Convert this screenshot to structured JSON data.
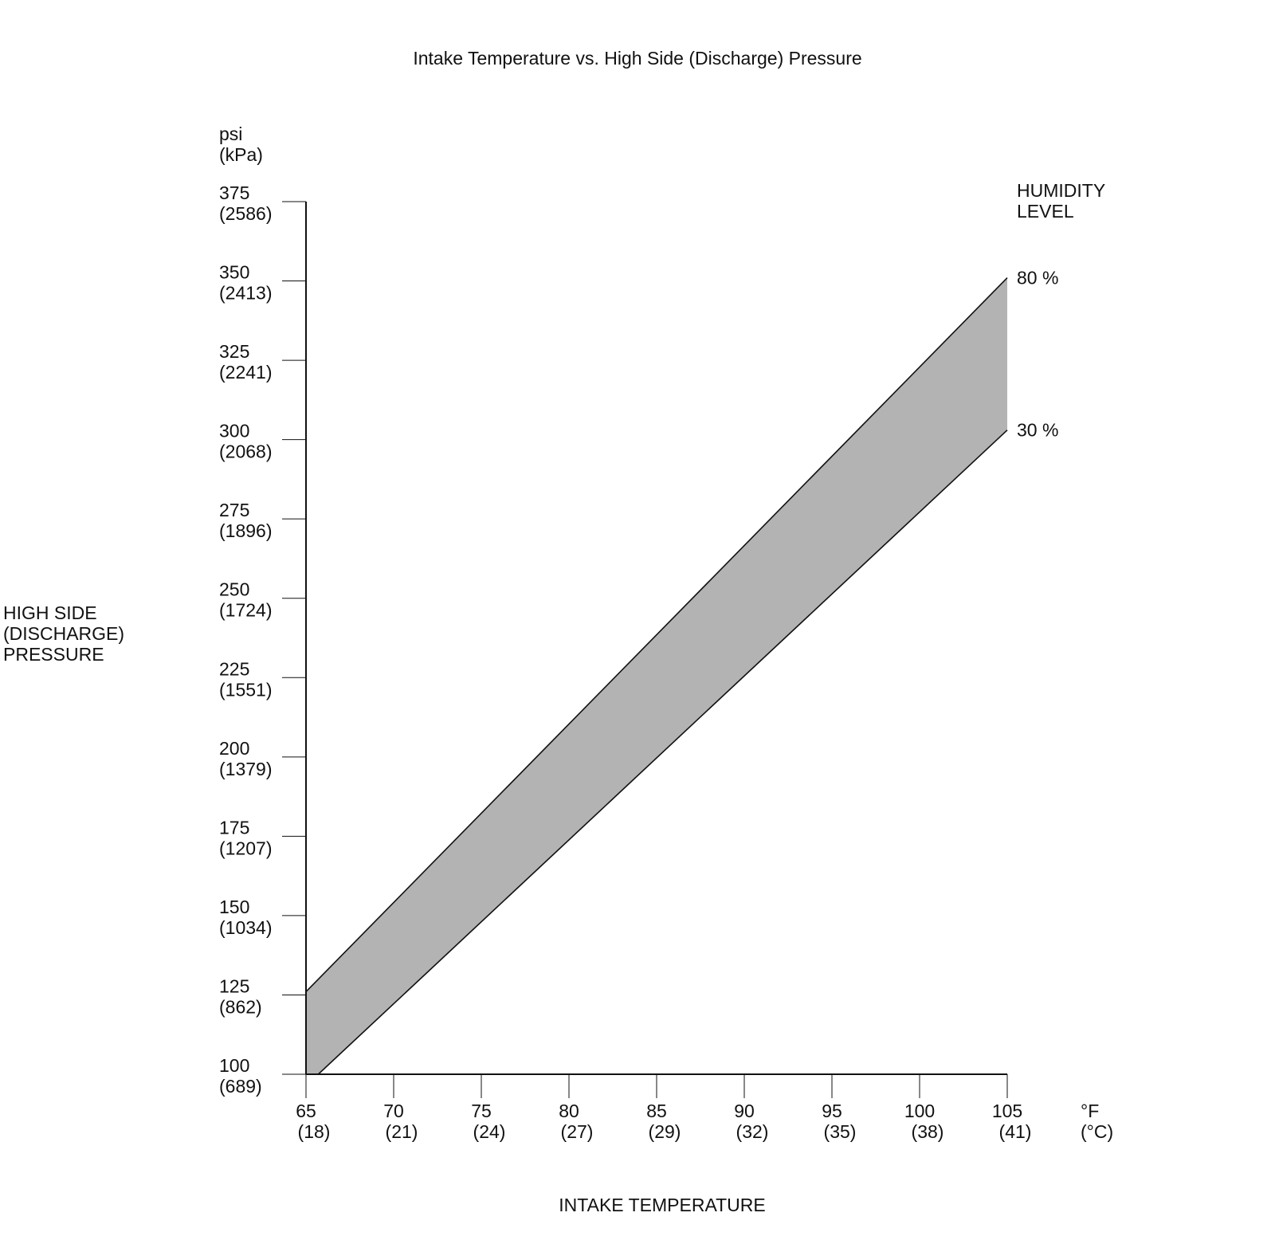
{
  "chart_data": {
    "type": "area",
    "title": "Intake Temperature vs. High Side (Discharge) Pressure",
    "xlabel": "INTAKE TEMPERATURE",
    "ylabel": [
      "HIGH SIDE",
      "(DISCHARGE)",
      "PRESSURE"
    ],
    "x_unit": [
      "°F",
      "(°C)"
    ],
    "y_unit": [
      "psi",
      "(kPa)"
    ],
    "xlim": [
      65,
      105
    ],
    "ylim": [
      100,
      375
    ],
    "x_ticks": [
      {
        "value": 65,
        "label": "65",
        "label2": "(18)"
      },
      {
        "value": 70,
        "label": "70",
        "label2": "(21)"
      },
      {
        "value": 75,
        "label": "75",
        "label2": "(24)"
      },
      {
        "value": 80,
        "label": "80",
        "label2": "(27)"
      },
      {
        "value": 85,
        "label": "85",
        "label2": "(29)"
      },
      {
        "value": 90,
        "label": "90",
        "label2": "(32)"
      },
      {
        "value": 95,
        "label": "95",
        "label2": "(35)"
      },
      {
        "value": 100,
        "label": "100",
        "label2": "(38)"
      },
      {
        "value": 105,
        "label": "105",
        "label2": "(41)"
      }
    ],
    "y_ticks": [
      {
        "value": 100,
        "label": "100",
        "label2": "(689)"
      },
      {
        "value": 125,
        "label": "125",
        "label2": "(862)"
      },
      {
        "value": 150,
        "label": "150",
        "label2": "(1034)"
      },
      {
        "value": 175,
        "label": "175",
        "label2": "(1207)"
      },
      {
        "value": 200,
        "label": "200",
        "label2": "(1379)"
      },
      {
        "value": 225,
        "label": "225",
        "label2": "(1551)"
      },
      {
        "value": 250,
        "label": "250",
        "label2": "(1724)"
      },
      {
        "value": 275,
        "label": "275",
        "label2": "(1896)"
      },
      {
        "value": 300,
        "label": "300",
        "label2": "(2068)"
      },
      {
        "value": 325,
        "label": "325",
        "label2": "(2241)"
      },
      {
        "value": 350,
        "label": "350",
        "label2": "(2413)"
      },
      {
        "value": 375,
        "label": "375",
        "label2": "(2586)"
      }
    ],
    "legend_title": [
      "HUMIDITY",
      "LEVEL"
    ],
    "series": [
      {
        "name": "80 %",
        "x": [
          65,
          105
        ],
        "y": [
          126,
          351
        ]
      },
      {
        "name": "30 %",
        "x": [
          65.7,
          105
        ],
        "y": [
          100,
          303
        ]
      }
    ],
    "band_fill": "#b3b3b3",
    "line_color": "#111111",
    "grid": false
  }
}
